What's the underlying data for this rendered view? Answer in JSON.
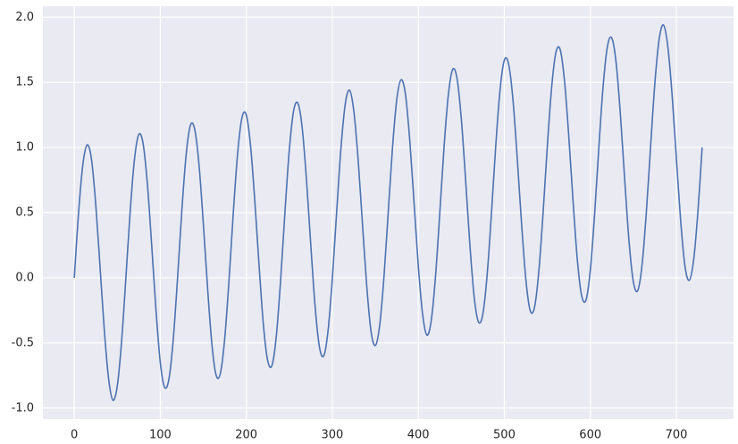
{
  "chart_data": {
    "type": "line",
    "x": [
      0,
      5,
      10,
      15,
      20,
      25,
      30,
      35,
      40,
      45,
      50,
      55,
      60,
      65,
      70,
      75,
      80,
      85,
      90,
      95,
      100,
      105,
      110,
      115,
      120,
      125,
      130,
      135,
      140,
      145,
      150,
      155,
      160,
      165,
      170,
      175,
      180,
      185,
      190,
      195,
      200,
      205,
      210,
      215,
      220,
      225,
      230,
      235,
      240,
      245,
      250,
      255,
      260,
      265,
      270,
      275,
      280,
      285,
      290,
      295,
      300,
      305,
      310,
      315,
      320,
      325,
      330,
      335,
      340,
      345,
      350,
      355,
      360,
      365,
      370,
      375,
      380,
      385,
      390,
      395,
      400,
      405,
      410,
      415,
      420,
      425,
      430,
      435,
      440,
      445,
      450,
      455,
      460,
      465,
      470,
      475,
      480,
      485,
      490,
      495,
      500,
      505,
      510,
      515,
      520,
      525,
      530,
      535,
      540,
      545,
      550,
      555,
      560,
      565,
      570,
      575,
      580,
      585,
      590,
      595,
      600,
      605,
      610,
      615,
      620,
      625,
      630,
      635,
      640,
      645,
      650,
      655,
      660,
      665,
      670,
      675,
      680,
      685,
      690,
      695,
      700,
      705,
      710,
      715,
      720,
      725,
      730
    ],
    "series": [
      {
        "color": "#4c72b0",
        "values": [
          0,
          0.5,
          0.87,
          1.02,
          0.91,
          0.56,
          0.08,
          -0.41,
          -0.78,
          -0.94,
          -0.83,
          -0.49,
          0,
          0.51,
          0.91,
          1.1,
          1.03,
          0.72,
          0.25,
          -0.25,
          -0.65,
          -0.84,
          -0.78,
          -0.48,
          -0.01,
          0.51,
          0.94,
          1.17,
          1.14,
          0.87,
          0.42,
          -0.08,
          -0.51,
          -0.75,
          -0.73,
          -0.46,
          -0.01,
          0.51,
          0.96,
          1.23,
          1.25,
          1.01,
          0.58,
          0.08,
          -0.37,
          -0.64,
          -0.67,
          -0.44,
          -0.01,
          0.51,
          0.98,
          1.28,
          1.34,
          1.15,
          0.75,
          0.25,
          -0.22,
          -0.53,
          -0.6,
          -0.41,
          -0.01,
          0.5,
          0.99,
          1.33,
          1.44,
          1.28,
          0.91,
          0.42,
          -0.06,
          -0.41,
          -0.52,
          -0.37,
          0,
          0.5,
          1.0,
          1.37,
          1.52,
          1.41,
          1.06,
          0.58,
          0.09,
          -0.28,
          -0.44,
          -0.33,
          0.01,
          0.5,
          1.01,
          1.41,
          1.6,
          1.53,
          1.22,
          0.75,
          0.25,
          -0.15,
          -0.34,
          -0.28,
          0.02,
          0.49,
          1.01,
          1.44,
          1.67,
          1.64,
          1.37,
          0.92,
          0.42,
          -0.01,
          -0.25,
          -0.23,
          0.04,
          0.49,
          1.01,
          1.46,
          1.73,
          1.75,
          1.51,
          1.08,
          0.58,
          0.13,
          -0.14,
          -0.17,
          0.06,
          0.49,
          1.01,
          1.48,
          1.78,
          1.84,
          1.65,
          1.25,
          0.75,
          0.28,
          -0.03,
          -0.1,
          0.09,
          0.49,
          1.0,
          1.49,
          1.83,
          1.94,
          1.78,
          1.41,
          0.92,
          0.44,
          0.09,
          -0.02,
          0.13,
          0.5,
          1.0
        ]
      }
    ],
    "xlim": [
      -36.5,
      766.5
    ],
    "ylim": [
      -1.084,
      2.084
    ],
    "xticks": [
      0,
      100,
      200,
      300,
      400,
      500,
      600,
      700
    ],
    "yticks": [
      {
        "value": -1,
        "label": "-1.0"
      },
      {
        "value": -0.5,
        "label": "-0.5"
      },
      {
        "value": 0,
        "label": "0.0"
      },
      {
        "value": 0.5,
        "label": "0.5"
      },
      {
        "value": 1,
        "label": "1.0"
      },
      {
        "value": 1.5,
        "label": "1.5"
      },
      {
        "value": 2,
        "label": "2.0"
      }
    ],
    "grid": true
  }
}
